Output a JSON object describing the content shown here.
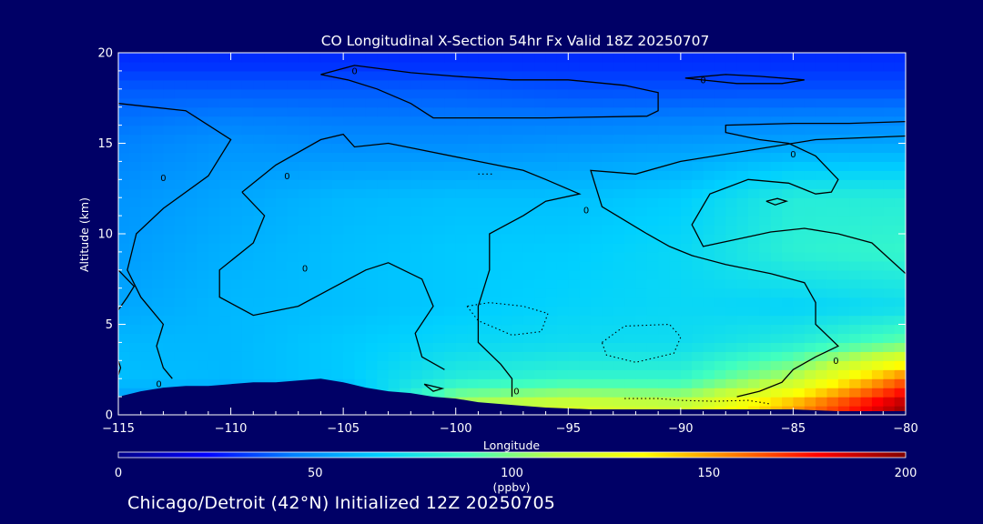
{
  "chart_data": {
    "type": "heatmap",
    "title": "CO Longitudinal X-Section 54hr  Fx Valid 18Z 20250707",
    "xlabel": "Longitude",
    "ylabel": "Altitude (km)",
    "xlim": [
      -115,
      -80
    ],
    "ylim": [
      0,
      20
    ],
    "x_ticks": [
      -115,
      -110,
      -105,
      -100,
      -95,
      -90,
      -85,
      -80
    ],
    "x_tick_labels": [
      "−115",
      "−110",
      "−105",
      "−100",
      "−95",
      "−90",
      "−85",
      "−80"
    ],
    "y_ticks": [
      0,
      5,
      10,
      15,
      20
    ],
    "y_tick_labels": [
      "0",
      "5",
      "10",
      "15",
      "20"
    ],
    "colorbar": {
      "min": 0,
      "max": 200,
      "ticks": [
        0,
        50,
        100,
        150,
        200
      ],
      "tick_labels": [
        "0",
        "50",
        "100",
        "150",
        "200"
      ],
      "unit_label": "(ppbv)",
      "colors": [
        "#000088",
        "#0000ff",
        "#0080ff",
        "#00d0ff",
        "#40ffc0",
        "#c0ff40",
        "#ffff00",
        "#ff8000",
        "#ff0000",
        "#800000"
      ]
    },
    "terrain_color": "#000066",
    "contour_label": "0",
    "field": {
      "x": [
        -115,
        -110,
        -105,
        -100,
        -95,
        -90,
        -85,
        -80
      ],
      "y": [
        0.5,
        2,
        4,
        6,
        9,
        12,
        15,
        18,
        19.5
      ],
      "values": [
        [
          50,
          50,
          50,
          110,
          120,
          115,
          150,
          195
        ],
        [
          62,
          60,
          65,
          80,
          85,
          85,
          110,
          160
        ],
        [
          60,
          60,
          65,
          70,
          72,
          72,
          80,
          95
        ],
        [
          55,
          60,
          62,
          65,
          68,
          70,
          68,
          72
        ],
        [
          52,
          58,
          62,
          65,
          66,
          70,
          82,
          85
        ],
        [
          50,
          55,
          60,
          62,
          62,
          66,
          80,
          80
        ],
        [
          45,
          50,
          48,
          48,
          50,
          52,
          54,
          55
        ],
        [
          38,
          38,
          38,
          38,
          36,
          36,
          36,
          36
        ],
        [
          30,
          30,
          30,
          30,
          30,
          30,
          30,
          30
        ]
      ]
    },
    "terrain": {
      "x": [
        -115,
        -114,
        -113,
        -112,
        -111,
        -110,
        -109,
        -108,
        -107,
        -106,
        -105,
        -104,
        -103,
        -102,
        -101,
        -100,
        -99,
        -98,
        -97,
        -96,
        -95,
        -94,
        -93,
        -92,
        -91,
        -90,
        -89,
        -88,
        -87,
        -86,
        -85,
        -84,
        -83,
        -82,
        -81,
        -80
      ],
      "height_km": [
        1.0,
        1.3,
        1.5,
        1.6,
        1.6,
        1.7,
        1.8,
        1.8,
        1.9,
        2.0,
        1.8,
        1.5,
        1.3,
        1.2,
        1.0,
        0.9,
        0.7,
        0.6,
        0.5,
        0.4,
        0.35,
        0.3,
        0.3,
        0.3,
        0.3,
        0.3,
        0.3,
        0.3,
        0.3,
        0.3,
        0.3,
        0.25,
        0.2,
        0.2,
        0.2,
        0.2
      ]
    },
    "contours_solid": [
      [
        [
          -115,
          17.2
        ],
        [
          -112,
          16.8
        ],
        [
          -110,
          15.2
        ],
        [
          -111,
          13.2
        ],
        [
          -113,
          11.4
        ],
        [
          -114.2,
          10.0
        ],
        [
          -114.6,
          8.0
        ],
        [
          -114.0,
          6.5
        ],
        [
          -113.0,
          5.0
        ],
        [
          -113.3,
          3.8
        ],
        [
          -113.0,
          2.6
        ],
        [
          -112.6,
          2.0
        ]
      ],
      [
        [
          -109.5,
          12.3
        ],
        [
          -108,
          13.8
        ],
        [
          -106,
          15.2
        ],
        [
          -105,
          15.5
        ],
        [
          -104.5,
          14.8
        ],
        [
          -103,
          15.0
        ],
        [
          -99,
          14.0
        ],
        [
          -97,
          13.5
        ],
        [
          -96,
          13.0
        ],
        [
          -94.5,
          12.2
        ],
        [
          -96,
          11.8
        ],
        [
          -97,
          11.0
        ],
        [
          -98.5,
          10.0
        ],
        [
          -98.5,
          8.0
        ],
        [
          -99,
          6.0
        ],
        [
          -99,
          4.0
        ],
        [
          -98.0,
          2.8
        ],
        [
          -97.5,
          2.0
        ],
        [
          -97.5,
          1.0
        ]
      ],
      [
        [
          -109.5,
          12.3
        ],
        [
          -108.5,
          11.0
        ],
        [
          -109.0,
          9.5
        ],
        [
          -110.5,
          8.0
        ],
        [
          -110.5,
          6.5
        ],
        [
          -109,
          5.5
        ],
        [
          -107,
          6.0
        ],
        [
          -105.5,
          7.0
        ],
        [
          -104,
          8.0
        ],
        [
          -103,
          8.4
        ],
        [
          -101.5,
          7.5
        ],
        [
          -101,
          6.0
        ],
        [
          -101.8,
          4.5
        ],
        [
          -101.5,
          3.2
        ],
        [
          -100.5,
          2.5
        ]
      ],
      [
        [
          -80,
          7.8
        ],
        [
          -81.5,
          9.5
        ],
        [
          -83,
          10.0
        ],
        [
          -84.5,
          10.3
        ],
        [
          -86,
          10.1
        ],
        [
          -87.5,
          9.7
        ],
        [
          -89,
          9.3
        ],
        [
          -89.5,
          10.5
        ],
        [
          -88.7,
          12.2
        ],
        [
          -87,
          13.0
        ],
        [
          -85.2,
          12.8
        ],
        [
          -84,
          12.2
        ],
        [
          -83.3,
          12.3
        ],
        [
          -83.0,
          13.0
        ],
        [
          -84.0,
          14.3
        ],
        [
          -85.2,
          15.0
        ],
        [
          -86.5,
          15.2
        ],
        [
          -88,
          15.6
        ],
        [
          -88,
          16.0
        ],
        [
          -85,
          16.1
        ],
        [
          -82.5,
          16.1
        ],
        [
          -80,
          16.2
        ]
      ],
      [
        [
          -80,
          15.4
        ],
        [
          -84,
          15.2
        ],
        [
          -87,
          14.6
        ],
        [
          -90,
          14.0
        ],
        [
          -92,
          13.3
        ],
        [
          -94.0,
          13.5
        ],
        [
          -93.5,
          11.5
        ],
        [
          -91.5,
          10.0
        ],
        [
          -90.5,
          9.3
        ],
        [
          -89.5,
          8.8
        ],
        [
          -88,
          8.3
        ],
        [
          -86,
          7.8
        ],
        [
          -84.5,
          7.3
        ],
        [
          -84,
          6.2
        ],
        [
          -84,
          5.0
        ],
        [
          -83,
          3.8
        ],
        [
          -84,
          3.2
        ],
        [
          -85,
          2.5
        ],
        [
          -85.5,
          1.8
        ],
        [
          -86.5,
          1.3
        ],
        [
          -87.5,
          1.0
        ]
      ],
      [
        [
          -106,
          18.8
        ],
        [
          -104.5,
          19.3
        ],
        [
          -102,
          18.9
        ],
        [
          -100,
          18.7
        ],
        [
          -97.5,
          18.5
        ],
        [
          -95,
          18.5
        ],
        [
          -92.5,
          18.2
        ],
        [
          -91,
          17.8
        ],
        [
          -91.0,
          16.8
        ],
        [
          -91.5,
          16.5
        ],
        [
          -96,
          16.4
        ],
        [
          -98,
          16.4
        ],
        [
          -101,
          16.4
        ],
        [
          -102,
          17.2
        ],
        [
          -103.5,
          18.0
        ],
        [
          -104.8,
          18.5
        ],
        [
          -106,
          18.8
        ]
      ],
      [
        [
          -89.8,
          18.6
        ],
        [
          -88,
          18.8
        ],
        [
          -86.5,
          18.7
        ],
        [
          -84.5,
          18.5
        ],
        [
          -85.5,
          18.3
        ],
        [
          -87.5,
          18.3
        ],
        [
          -89.8,
          18.6
        ]
      ],
      [
        [
          -115,
          8.0
        ],
        [
          -114.3,
          7.1
        ],
        [
          -114.6,
          6.5
        ],
        [
          -115,
          5.8
        ]
      ],
      [
        [
          -115,
          3.0
        ],
        [
          -114.9,
          2.6
        ],
        [
          -115,
          2.2
        ]
      ],
      [
        [
          -101.4,
          1.7
        ],
        [
          -100.6,
          1.45
        ],
        [
          -101.0,
          1.3
        ],
        [
          -101.4,
          1.7
        ]
      ],
      [
        [
          -86.2,
          11.8
        ],
        [
          -85.7,
          11.95
        ],
        [
          -85.3,
          11.8
        ],
        [
          -85.8,
          11.6
        ],
        [
          -86.2,
          11.8
        ]
      ]
    ],
    "contours_dashed": [
      [
        [
          -99.5,
          6.0
        ],
        [
          -99,
          5.2
        ],
        [
          -97.5,
          4.4
        ],
        [
          -96.2,
          4.6
        ],
        [
          -95.9,
          5.6
        ],
        [
          -97,
          6.0
        ],
        [
          -98.5,
          6.2
        ],
        [
          -99.5,
          6.0
        ]
      ],
      [
        [
          -93.5,
          4.0
        ],
        [
          -92.5,
          4.9
        ],
        [
          -90.5,
          5.0
        ],
        [
          -90,
          4.3
        ],
        [
          -90.3,
          3.4
        ],
        [
          -92,
          2.9
        ],
        [
          -93.3,
          3.3
        ],
        [
          -93.5,
          4.0
        ]
      ],
      [
        [
          -92.5,
          0.9
        ],
        [
          -91.0,
          0.9
        ],
        [
          -90.0,
          0.8
        ],
        [
          -88.5,
          0.75
        ],
        [
          -87,
          0.8
        ],
        [
          -86,
          0.6
        ]
      ],
      [
        [
          -99,
          13.3
        ],
        [
          -98.3,
          13.3
        ]
      ]
    ],
    "contour_labels": [
      [
        -113.0,
        13.1
      ],
      [
        -107.5,
        13.2
      ],
      [
        -106.7,
        8.1
      ],
      [
        -113.2,
        1.7
      ],
      [
        -104.5,
        19.0
      ],
      [
        -89.0,
        18.5
      ],
      [
        -85.0,
        14.4
      ],
      [
        -94.2,
        11.3
      ],
      [
        -97.3,
        1.3
      ],
      [
        -83.1,
        3.0
      ]
    ]
  },
  "caption": "Chicago/Detroit (42°N) Initialized 12Z 20250705"
}
